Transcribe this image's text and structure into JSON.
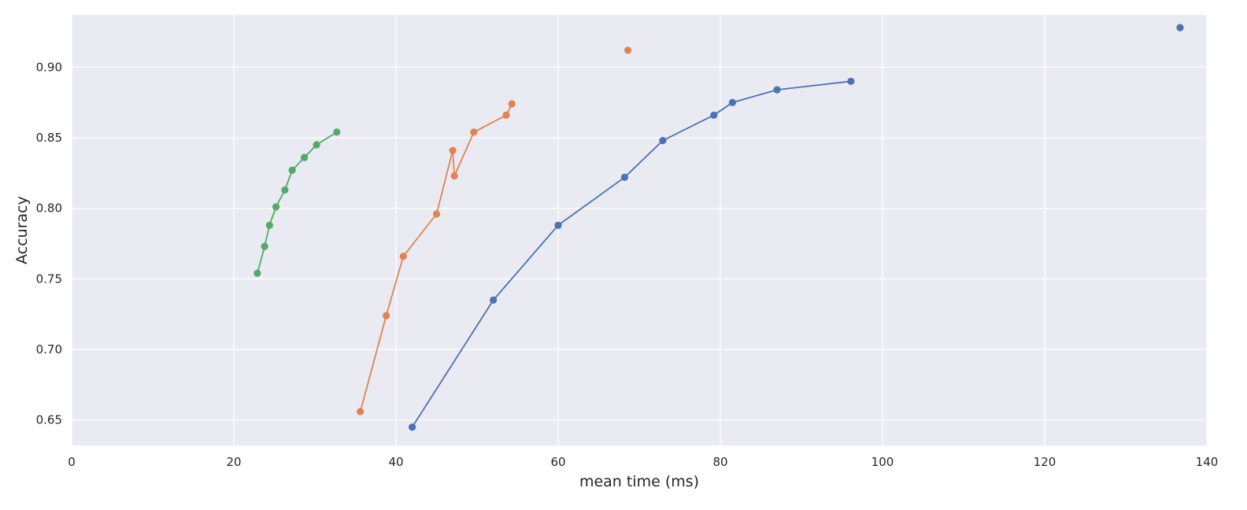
{
  "chart_data": {
    "type": "line",
    "title": "",
    "xlabel": "mean time (ms)",
    "ylabel": "Accuracy",
    "xlim": [
      0,
      140
    ],
    "ylim": [
      0.632,
      0.937
    ],
    "x_ticks": [
      0,
      20,
      40,
      60,
      80,
      100,
      120,
      140
    ],
    "y_ticks": [
      0.65,
      0.7,
      0.75,
      0.8,
      0.85,
      0.9
    ],
    "y_tick_labels": [
      "0.65",
      "0.70",
      "0.75",
      "0.80",
      "0.85",
      "0.90"
    ],
    "grid": true,
    "background": "#eaeaf2",
    "series": [
      {
        "color": "#4c72b0",
        "x": [
          42.0,
          52.0,
          60.0,
          68.2,
          72.9,
          79.2,
          81.5,
          87.0,
          96.1
        ],
        "y": [
          0.645,
          0.735,
          0.788,
          0.822,
          0.848,
          0.866,
          0.875,
          0.884,
          0.89
        ]
      },
      {
        "color": "#dd8452",
        "x": [
          35.6,
          38.8,
          40.9,
          45.0,
          47.0,
          47.2,
          49.6,
          53.6,
          54.3
        ],
        "y": [
          0.656,
          0.724,
          0.766,
          0.796,
          0.841,
          0.823,
          0.854,
          0.866,
          0.874
        ]
      },
      {
        "color": "#55a868",
        "x": [
          22.9,
          23.8,
          24.4,
          25.2,
          26.3,
          27.2,
          28.7,
          30.2,
          32.7
        ],
        "y": [
          0.754,
          0.773,
          0.788,
          0.801,
          0.813,
          0.827,
          0.836,
          0.845,
          0.854
        ]
      }
    ],
    "standalone_points": [
      {
        "x": 136.7,
        "y": 0.928,
        "color": "#4c72b0"
      },
      {
        "x": 68.6,
        "y": 0.912,
        "color": "#dd8452"
      }
    ]
  }
}
